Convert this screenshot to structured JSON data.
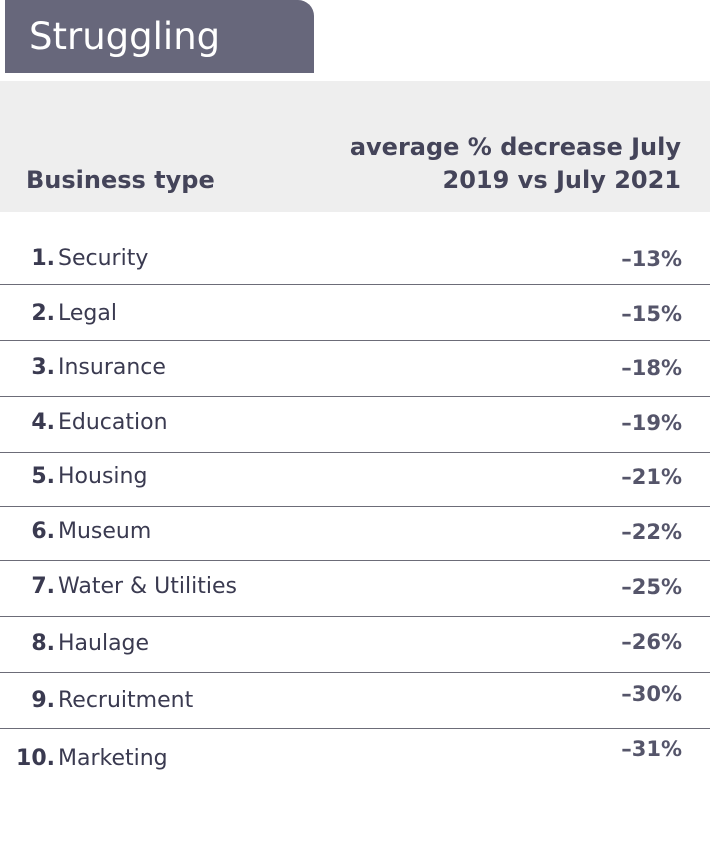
{
  "title": "Struggling",
  "columns": {
    "business_type": "Business type",
    "decrease_line1": "average % decrease July",
    "decrease_line2": "2019 vs July 2021"
  },
  "rows": [
    {
      "rank": "1.",
      "name": "Security",
      "value": "–13%"
    },
    {
      "rank": "2.",
      "name": "Legal",
      "value": "–15%"
    },
    {
      "rank": "3.",
      "name": "Insurance",
      "value": "–18%"
    },
    {
      "rank": "4.",
      "name": "Education",
      "value": "–19%"
    },
    {
      "rank": "5.",
      "name": "Housing",
      "value": "–21%"
    },
    {
      "rank": "6.",
      "name": "Museum",
      "value": "–22%"
    },
    {
      "rank": "7.",
      "name": "Water & Utilities",
      "value": "–25%"
    },
    {
      "rank": "8.",
      "name": "Haulage",
      "value": "–26%"
    },
    {
      "rank": "9.",
      "name": "Recruitment",
      "value": "–30%"
    },
    {
      "rank": "10.",
      "name": "Marketing",
      "value": "–31%"
    }
  ]
}
